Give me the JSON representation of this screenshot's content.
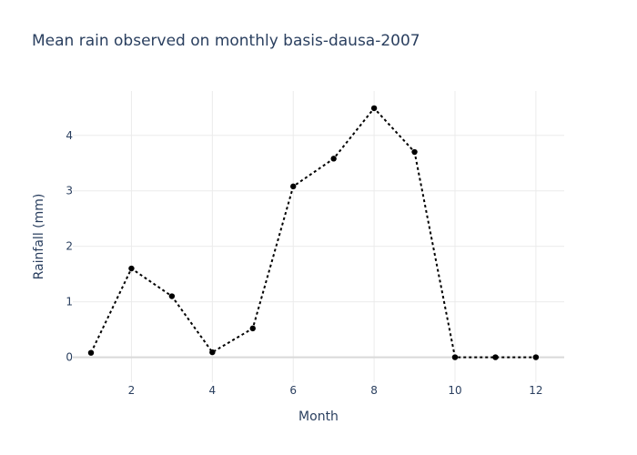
{
  "chart_data": {
    "type": "line",
    "title": "Mean rain observed on monthly basis-dausa-2007",
    "xlabel": "Month",
    "ylabel": "Rainfall (mm)",
    "x": [
      1,
      2,
      3,
      4,
      5,
      6,
      7,
      8,
      9,
      10,
      11,
      12
    ],
    "series": [
      {
        "values": [
          0.08,
          1.6,
          1.1,
          0.09,
          0.52,
          3.08,
          3.58,
          4.49,
          3.7,
          0.0,
          0.0,
          0.0
        ]
      }
    ],
    "xlim": [
      0.55,
      12.7
    ],
    "ylim": [
      -0.45,
      4.8
    ],
    "xticks": [
      2,
      4,
      6,
      8,
      10,
      12
    ],
    "yticks": [
      0,
      1,
      2,
      3,
      4
    ],
    "grid": true,
    "line_style": "dotted",
    "marker": "circle",
    "colors": {
      "line": "#000000",
      "text": "#2a3f5f",
      "grid": "#ebebeb",
      "zeroline": "#d9d9d9"
    }
  }
}
